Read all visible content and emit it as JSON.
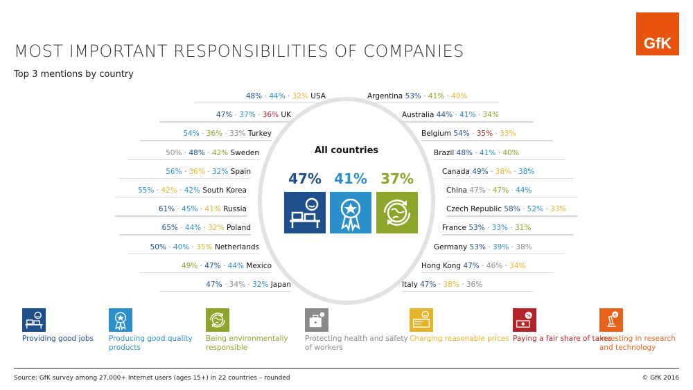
{
  "logo": "GfK",
  "title": "MOST IMPORTANT RESPONSIBILITIES OF COMPANIES",
  "subtitle": "Top 3 mentions by country",
  "center": {
    "label": "All countries",
    "items": [
      {
        "value": "47%",
        "category": "jobs"
      },
      {
        "value": "41%",
        "category": "products"
      },
      {
        "value": "37%",
        "category": "environment"
      }
    ]
  },
  "colors": {
    "jobs": "#1f4e8c",
    "products": "#2b8fcc",
    "environment": "#8da52a",
    "health": "#8a8a8a",
    "prices": "#e3b42a",
    "taxes": "#b5232a",
    "research": "#e8621c"
  },
  "legend": [
    {
      "category": "jobs",
      "label": "Providing good jobs",
      "icon": "desk-worker-icon"
    },
    {
      "category": "products",
      "label": "Producing good quality products",
      "icon": "award-ribbon-icon"
    },
    {
      "category": "environment",
      "label": "Being environmentally responsible",
      "icon": "globe-recycle-icon"
    },
    {
      "category": "health",
      "label": "Protecting health and safety of workers",
      "icon": "medical-kit-icon"
    },
    {
      "category": "prices",
      "label": "Charging reasonable prices",
      "icon": "price-tag-icon"
    },
    {
      "category": "taxes",
      "label": "Paying a fair share of taxes",
      "icon": "tax-percent-icon"
    },
    {
      "category": "research",
      "label": "Investing in research and technology",
      "icon": "microscope-icon"
    }
  ],
  "chart_data": {
    "type": "table",
    "title": "MOST IMPORTANT RESPONSIBILITIES OF COMPANIES",
    "subtitle": "Top 3 mentions by country",
    "left": [
      {
        "country": "USA",
        "values": [
          [
            48,
            "jobs"
          ],
          [
            44,
            "products"
          ],
          [
            32,
            "prices"
          ]
        ]
      },
      {
        "country": "UK",
        "values": [
          [
            47,
            "jobs"
          ],
          [
            37,
            "products"
          ],
          [
            36,
            "taxes"
          ]
        ]
      },
      {
        "country": "Turkey",
        "values": [
          [
            54,
            "products"
          ],
          [
            36,
            "environment"
          ],
          [
            33,
            "health"
          ]
        ]
      },
      {
        "country": "Sweden",
        "values": [
          [
            50,
            "health"
          ],
          [
            48,
            "jobs"
          ],
          [
            42,
            "environment"
          ]
        ]
      },
      {
        "country": "Spain",
        "values": [
          [
            56,
            "products"
          ],
          [
            36,
            "prices"
          ],
          [
            32,
            "products"
          ]
        ]
      },
      {
        "country": "South Korea",
        "values": [
          [
            55,
            "products"
          ],
          [
            42,
            "prices"
          ],
          [
            42,
            "products"
          ]
        ]
      },
      {
        "country": "Russia",
        "values": [
          [
            61,
            "jobs"
          ],
          [
            45,
            "products"
          ],
          [
            41,
            "prices"
          ]
        ]
      },
      {
        "country": "Poland",
        "values": [
          [
            65,
            "jobs"
          ],
          [
            44,
            "products"
          ],
          [
            32,
            "prices"
          ]
        ]
      },
      {
        "country": "Netherlands",
        "values": [
          [
            50,
            "jobs"
          ],
          [
            40,
            "products"
          ],
          [
            35,
            "prices"
          ]
        ]
      },
      {
        "country": "Mexico",
        "values": [
          [
            49,
            "environment"
          ],
          [
            47,
            "jobs"
          ],
          [
            44,
            "products"
          ]
        ]
      },
      {
        "country": "Japan",
        "values": [
          [
            47,
            "jobs"
          ],
          [
            34,
            "health"
          ],
          [
            32,
            "products"
          ]
        ]
      }
    ],
    "right": [
      {
        "country": "Argentina",
        "values": [
          [
            53,
            "jobs"
          ],
          [
            41,
            "environment"
          ],
          [
            40,
            "prices"
          ]
        ]
      },
      {
        "country": "Australia",
        "values": [
          [
            44,
            "jobs"
          ],
          [
            41,
            "products"
          ],
          [
            34,
            "environment"
          ]
        ]
      },
      {
        "country": "Belgium",
        "values": [
          [
            54,
            "jobs"
          ],
          [
            35,
            "taxes"
          ],
          [
            33,
            "prices"
          ]
        ]
      },
      {
        "country": "Brazil",
        "values": [
          [
            48,
            "jobs"
          ],
          [
            41,
            "products"
          ],
          [
            40,
            "environment"
          ]
        ]
      },
      {
        "country": "Canada",
        "values": [
          [
            49,
            "jobs"
          ],
          [
            38,
            "prices"
          ],
          [
            38,
            "products"
          ]
        ]
      },
      {
        "country": "China",
        "values": [
          [
            47,
            "health"
          ],
          [
            47,
            "environment"
          ],
          [
            44,
            "products"
          ]
        ]
      },
      {
        "country": "Czech Republic",
        "values": [
          [
            58,
            "jobs"
          ],
          [
            52,
            "products"
          ],
          [
            33,
            "prices"
          ]
        ]
      },
      {
        "country": "France",
        "values": [
          [
            53,
            "jobs"
          ],
          [
            33,
            "products"
          ],
          [
            31,
            "environment"
          ]
        ]
      },
      {
        "country": "Germany",
        "values": [
          [
            53,
            "jobs"
          ],
          [
            39,
            "products"
          ],
          [
            38,
            "health"
          ]
        ]
      },
      {
        "country": "Hong Kong",
        "values": [
          [
            47,
            "jobs"
          ],
          [
            46,
            "health"
          ],
          [
            34,
            "prices"
          ]
        ]
      },
      {
        "country": "Italy",
        "values": [
          [
            47,
            "jobs"
          ],
          [
            38,
            "prices"
          ],
          [
            36,
            "health"
          ]
        ]
      }
    ]
  },
  "footer": {
    "source": "Source: GfK survey among 27,000+ Internet users (ages 15+) in 22 countries – rounded",
    "copyright": "© GfK 2016"
  }
}
